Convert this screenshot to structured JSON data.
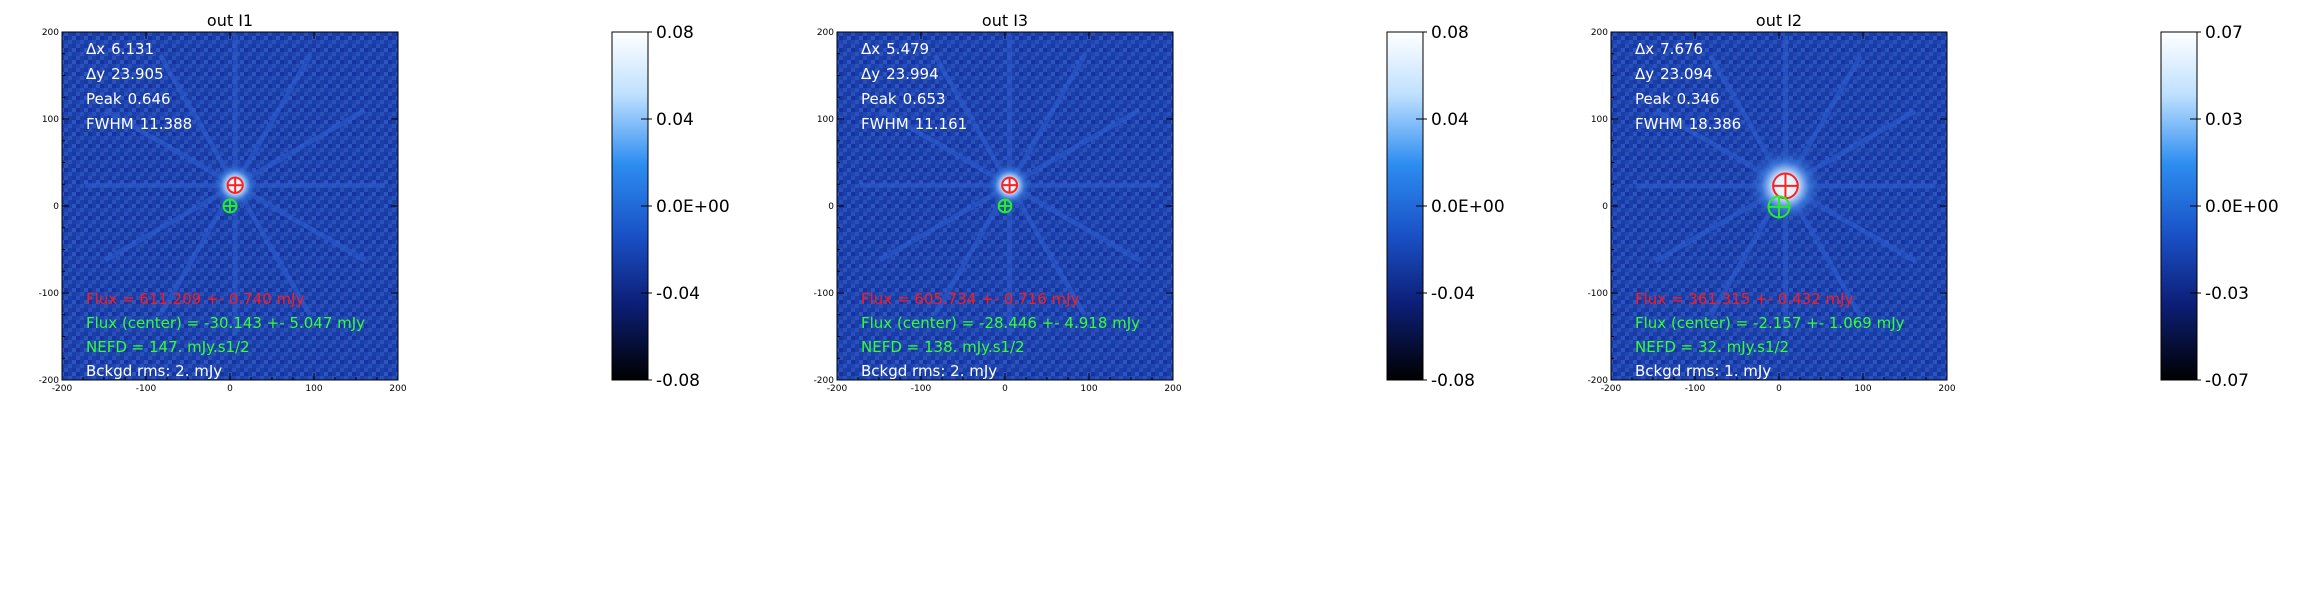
{
  "chart_data": [
    {
      "type": "heatmap",
      "title": "out   I1",
      "xlim": [
        -200,
        200
      ],
      "ylim": [
        -200,
        200
      ],
      "x_ticks": [
        "-200",
        "-100",
        "0",
        "100",
        "200"
      ],
      "y_ticks": [
        "-200",
        "-100",
        "0",
        "100",
        "200"
      ],
      "colorbar": {
        "range": [
          -0.08,
          0.08
        ],
        "ticks": [
          "0.08",
          "0.04",
          "0.0E+00",
          "-0.04",
          "-0.08"
        ]
      },
      "stats": [
        {
          "label": "Δx",
          "value": "6.131"
        },
        {
          "label": "Δy",
          "value": "23.905"
        },
        {
          "label": "Peak",
          "value": "0.646"
        },
        {
          "label": "FWHM",
          "value": "11.388"
        }
      ],
      "source_peak": {
        "x": 6.131,
        "y": 23.905,
        "fwhm": 11.388
      },
      "center_marker": {
        "x": 0,
        "y": 0
      },
      "flux": "Flux = 611.209 +- 0.740 mJy",
      "flux_center": "Flux (center) = -30.143 +- 5.047 mJy",
      "nefd": "NEFD      =   147. mJy.s1/2",
      "bckgd": "Bckgd rms:     2. mJy"
    },
    {
      "type": "heatmap",
      "title": "out   I3",
      "xlim": [
        -200,
        200
      ],
      "ylim": [
        -200,
        200
      ],
      "x_ticks": [
        "-200",
        "-100",
        "0",
        "100",
        "200"
      ],
      "y_ticks": [
        "-200",
        "-100",
        "0",
        "100",
        "200"
      ],
      "colorbar": {
        "range": [
          -0.08,
          0.08
        ],
        "ticks": [
          "0.08",
          "0.04",
          "0.0E+00",
          "-0.04",
          "-0.08"
        ]
      },
      "stats": [
        {
          "label": "Δx",
          "value": "5.479"
        },
        {
          "label": "Δy",
          "value": "23.994"
        },
        {
          "label": "Peak",
          "value": "0.653"
        },
        {
          "label": "FWHM",
          "value": "11.161"
        }
      ],
      "source_peak": {
        "x": 5.479,
        "y": 23.994,
        "fwhm": 11.161
      },
      "center_marker": {
        "x": 0,
        "y": 0
      },
      "flux": "Flux = 605.734 +- 0.716 mJy",
      "flux_center": "Flux (center) = -28.446 +- 4.918 mJy",
      "nefd": "NEFD      =   138. mJy.s1/2",
      "bckgd": "Bckgd rms:     2. mJy"
    },
    {
      "type": "heatmap",
      "title": "out   I2",
      "xlim": [
        -200,
        200
      ],
      "ylim": [
        -200,
        200
      ],
      "x_ticks": [
        "-200",
        "-100",
        "0",
        "100",
        "200"
      ],
      "y_ticks": [
        "-200",
        "-100",
        "0",
        "100",
        "200"
      ],
      "colorbar": {
        "range": [
          -0.07,
          0.07
        ],
        "ticks": [
          "0.07",
          "0.03",
          "0.0E+00",
          "-0.03",
          "-0.07"
        ]
      },
      "stats": [
        {
          "label": "Δx",
          "value": "7.676"
        },
        {
          "label": "Δy",
          "value": "23.094"
        },
        {
          "label": "Peak",
          "value": "0.346"
        },
        {
          "label": "FWHM",
          "value": "18.386"
        }
      ],
      "source_peak": {
        "x": 7.676,
        "y": 23.094,
        "fwhm": 18.386
      },
      "center_marker": {
        "x": 0,
        "y": -1
      },
      "flux": "Flux = 361.315 +- 0.432 mJy",
      "flux_center": "Flux (center) = -2.157 +- 1.069 mJy",
      "nefd": "NEFD      =    32. mJy.s1/2",
      "bckgd": "Bckgd rms:     1. mJy"
    }
  ],
  "colors": {
    "background_map": "#1a3fa6",
    "flux": "#ff1a1a",
    "flux_center": "#33ff33",
    "text": "#ffffff",
    "peak_marker": "#ff2020",
    "center_marker": "#22ee22"
  }
}
